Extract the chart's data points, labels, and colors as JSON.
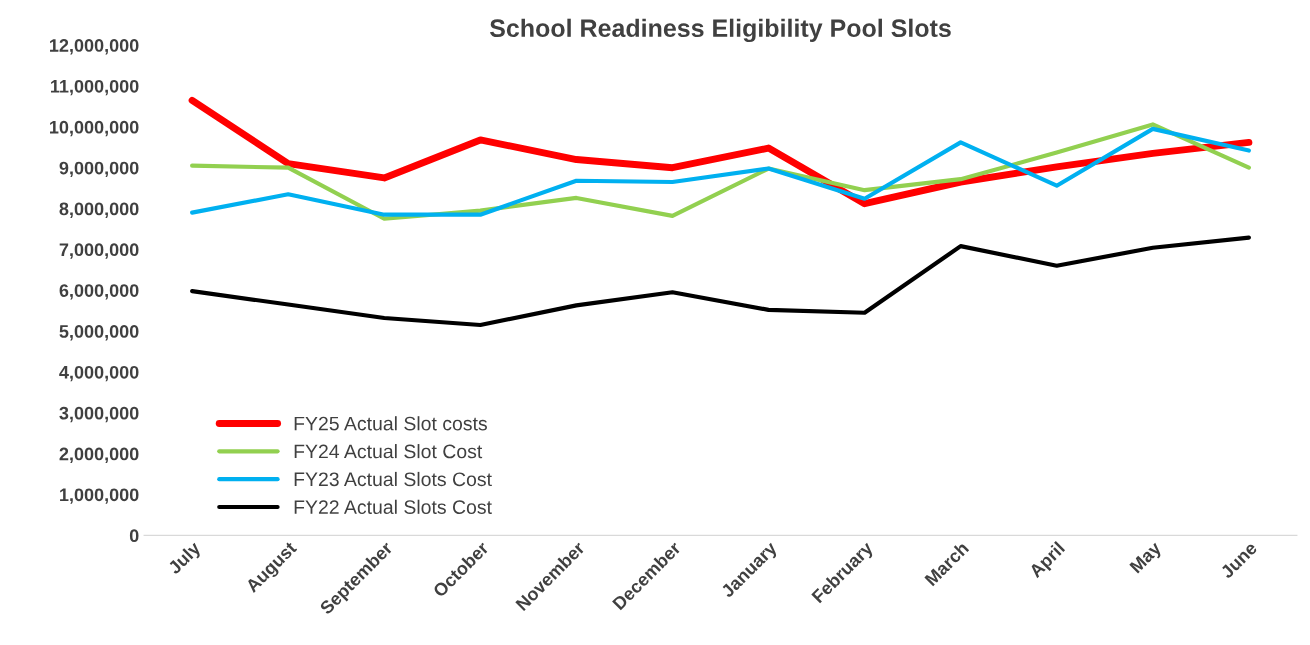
{
  "chart_data": {
    "type": "line",
    "title": "School Readiness Eligibility Pool Slots",
    "categories": [
      "July",
      "August",
      "September",
      "October",
      "November",
      "December",
      "January",
      "February",
      "March",
      "April",
      "May",
      "June"
    ],
    "series": [
      {
        "name": "FY25 Actual Slot costs",
        "color": "#ff0000",
        "values": [
          10650000,
          9100000,
          8750000,
          9680000,
          9200000,
          9000000,
          9480000,
          8120000,
          8650000,
          9020000,
          9350000,
          9620000
        ]
      },
      {
        "name": "FY24 Actual Slot Cost",
        "color": "#92d050",
        "values": [
          9050000,
          9000000,
          7750000,
          7950000,
          8260000,
          7820000,
          8980000,
          8450000,
          8720000,
          9370000,
          10060000,
          9000000
        ]
      },
      {
        "name": "FY23 Actual Slots Cost",
        "color": "#00b0f0",
        "values": [
          7900000,
          8350000,
          7850000,
          7850000,
          8680000,
          8650000,
          8980000,
          8240000,
          9620000,
          8560000,
          9950000,
          9420000
        ]
      },
      {
        "name": "FY22 Actual Slots Cost",
        "color": "#000000",
        "values": [
          5980000,
          5650000,
          5320000,
          5150000,
          5630000,
          5950000,
          5520000,
          5450000,
          7080000,
          6600000,
          7040000,
          7290000
        ]
      }
    ],
    "ylim": [
      0,
      12000000
    ],
    "yticks": [
      {
        "value": 0,
        "label": "0"
      },
      {
        "value": 1000000,
        "label": "1,000,000"
      },
      {
        "value": 2000000,
        "label": "2,000,000"
      },
      {
        "value": 3000000,
        "label": "3,000,000"
      },
      {
        "value": 4000000,
        "label": "4,000,000"
      },
      {
        "value": 5000000,
        "label": "5,000,000"
      },
      {
        "value": 6000000,
        "label": "6,000,000"
      },
      {
        "value": 7000000,
        "label": "7,000,000"
      },
      {
        "value": 8000000,
        "label": "8,000,000"
      },
      {
        "value": 9000000,
        "label": "9,000,000"
      },
      {
        "value": 10000000,
        "label": "10,000,000"
      },
      {
        "value": 11000000,
        "label": "11,000,000"
      },
      {
        "value": 12000000,
        "label": "12,000,000"
      }
    ],
    "grid": false,
    "legend": "bottom left",
    "marker": "none",
    "line_style": "solid"
  }
}
